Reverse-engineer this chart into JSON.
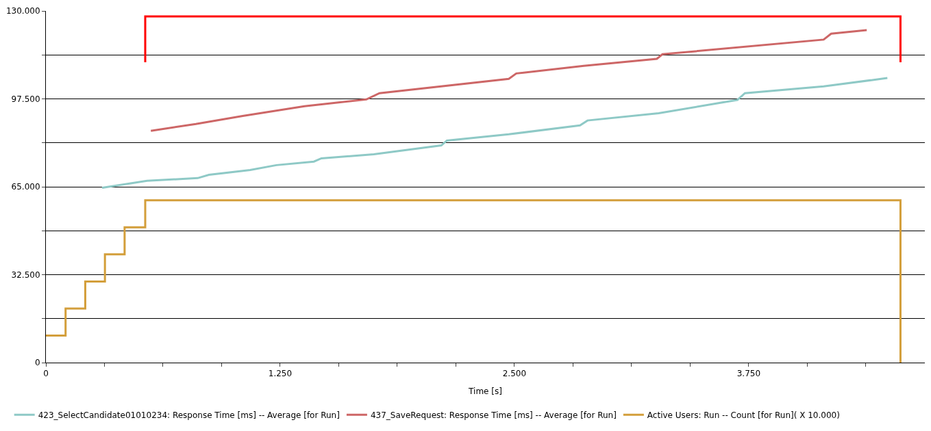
{
  "chart_data": {
    "type": "line",
    "xlabel": "Time [s]",
    "xlim": [
      0,
      4690
    ],
    "ylim": [
      0,
      130000
    ],
    "xticks": [
      {
        "value": 0,
        "label": "0"
      },
      {
        "value": 312.5,
        "label": null
      },
      {
        "value": 625,
        "label": null
      },
      {
        "value": 937.5,
        "label": null
      },
      {
        "value": 1250,
        "label": "1.250"
      },
      {
        "value": 1562.5,
        "label": null
      },
      {
        "value": 1875,
        "label": null
      },
      {
        "value": 2187.5,
        "label": null
      },
      {
        "value": 2500,
        "label": "2.500"
      },
      {
        "value": 2812.5,
        "label": null
      },
      {
        "value": 3125,
        "label": null
      },
      {
        "value": 3437.5,
        "label": null
      },
      {
        "value": 3750,
        "label": "3.750"
      },
      {
        "value": 4062.5,
        "label": null
      },
      {
        "value": 4375,
        "label": null
      }
    ],
    "yticks": [
      {
        "value": 0,
        "label": "0"
      },
      {
        "value": 16250,
        "label": null
      },
      {
        "value": 32500,
        "label": "32.500"
      },
      {
        "value": 48750,
        "label": null
      },
      {
        "value": 65000,
        "label": "65.000"
      },
      {
        "value": 81250,
        "label": null
      },
      {
        "value": 97500,
        "label": "97.500"
      },
      {
        "value": 113750,
        "label": null
      },
      {
        "value": 130000,
        "label": "130.000"
      }
    ],
    "grid": "y",
    "legend": "bottom left",
    "marker": "none",
    "series": [
      {
        "name": "423_SelectCandidate01010234: Response Time [ms] -- Average [for Run]",
        "color": "#8ec9c6",
        "x": [
          300,
          540,
          810,
          870,
          1090,
          1230,
          1430,
          1470,
          1750,
          2110,
          2140,
          2470,
          2850,
          2890,
          3270,
          3690,
          3730,
          4150,
          4490
        ],
        "values": [
          64600,
          67200,
          68200,
          69400,
          71200,
          73000,
          74300,
          75500,
          77000,
          80300,
          82100,
          84400,
          87700,
          89500,
          92200,
          97100,
          99600,
          102100,
          105200
        ]
      },
      {
        "name": "437_SaveRequest: Response Time [ms] -- Average [for Run]",
        "color": "#cd6666",
        "x": [
          560,
          800,
          1050,
          1380,
          1710,
          1780,
          2470,
          2510,
          2870,
          3260,
          3290,
          4150,
          4190,
          4380
        ],
        "values": [
          85700,
          88200,
          91200,
          94800,
          97300,
          99600,
          104900,
          106900,
          109700,
          112300,
          114000,
          119400,
          121600,
          122900
        ]
      },
      {
        "name": "Active Users: Run -- Count [for Run]( X 10.000)",
        "type": "step",
        "color": "#d39e3a",
        "x": [
          0,
          105,
          210,
          315,
          420,
          530,
          4560
        ],
        "values": [
          10000,
          20000,
          30000,
          40000,
          50000,
          60000,
          0
        ]
      },
      {
        "color": "#ff0000",
        "x": [
          530,
          530,
          4560,
          4560
        ],
        "values": [
          111000,
          128000,
          128000,
          111000
        ]
      }
    ]
  }
}
